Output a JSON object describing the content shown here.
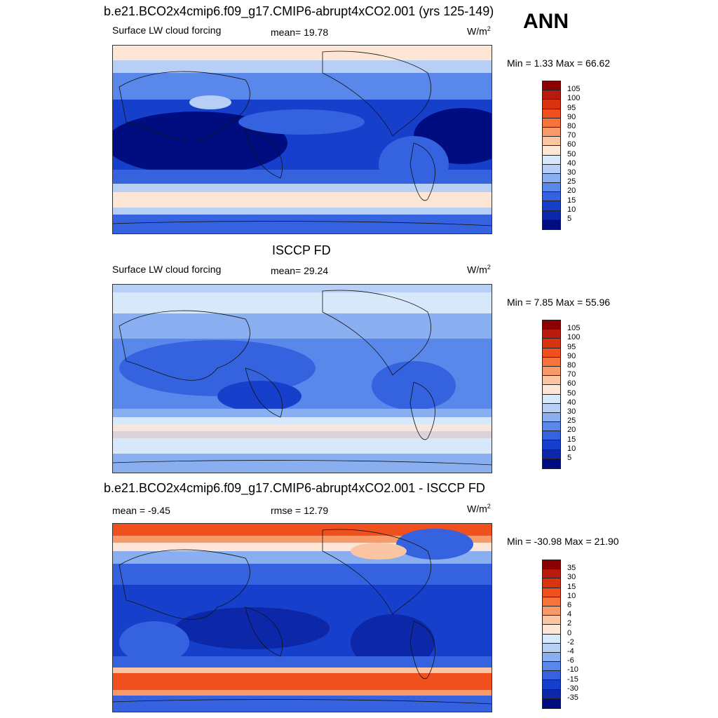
{
  "season": "ANN",
  "units_prefix": "W/m",
  "units_sup": "2",
  "panels": [
    {
      "title": "b.e21.BCO2x4cmip6.f09_g17.CMIP6-abrupt4xCO2.001 (yrs 125-149)",
      "variable": "Surface LW cloud forcing",
      "stat_text": "mean=  19.78",
      "minmax_text": "Min =   1.33 Max =  66.62",
      "scale": "absolute"
    },
    {
      "title": "ISCCP FD",
      "variable": "Surface LW cloud forcing",
      "stat_text": "mean=  29.24",
      "minmax_text": "Min =   7.85 Max =  55.96",
      "scale": "absolute"
    },
    {
      "title": "b.e21.BCO2x4cmip6.f09_g17.CMIP6-abrupt4xCO2.001 - ISCCP FD",
      "left_text": "mean =  -9.45",
      "stat_text": "rmse =  12.79",
      "minmax_text": "Min = -30.98 Max =  21.90",
      "scale": "difference"
    }
  ],
  "colorbars": {
    "absolute": {
      "levels": [
        "105",
        "100",
        "95",
        "90",
        "80",
        "70",
        "60",
        "50",
        "40",
        "30",
        "25",
        "20",
        "15",
        "10",
        "5"
      ],
      "colors": [
        "#8b0000",
        "#b81a0e",
        "#d9340f",
        "#f0501e",
        "#f6743c",
        "#f8996a",
        "#fbc4a2",
        "#fde6d6",
        "#d8e8fb",
        "#b7cff5",
        "#8aaff0",
        "#5a87ea",
        "#3563e0",
        "#1640cc",
        "#0c28a8",
        "#000d80"
      ]
    },
    "difference": {
      "levels": [
        "35",
        "30",
        "15",
        "10",
        "6",
        "4",
        "2",
        "0",
        "-2",
        "-4",
        "-6",
        "-10",
        "-15",
        "-30",
        "-35"
      ],
      "colors": [
        "#8b0000",
        "#b81a0e",
        "#d9340f",
        "#f0501e",
        "#f6743c",
        "#f8996a",
        "#fbc4a2",
        "#fde6d6",
        "#d8e8fb",
        "#b7cff5",
        "#8aaff0",
        "#5a87ea",
        "#3563e0",
        "#1640cc",
        "#0c28a8",
        "#000d80"
      ]
    }
  }
}
